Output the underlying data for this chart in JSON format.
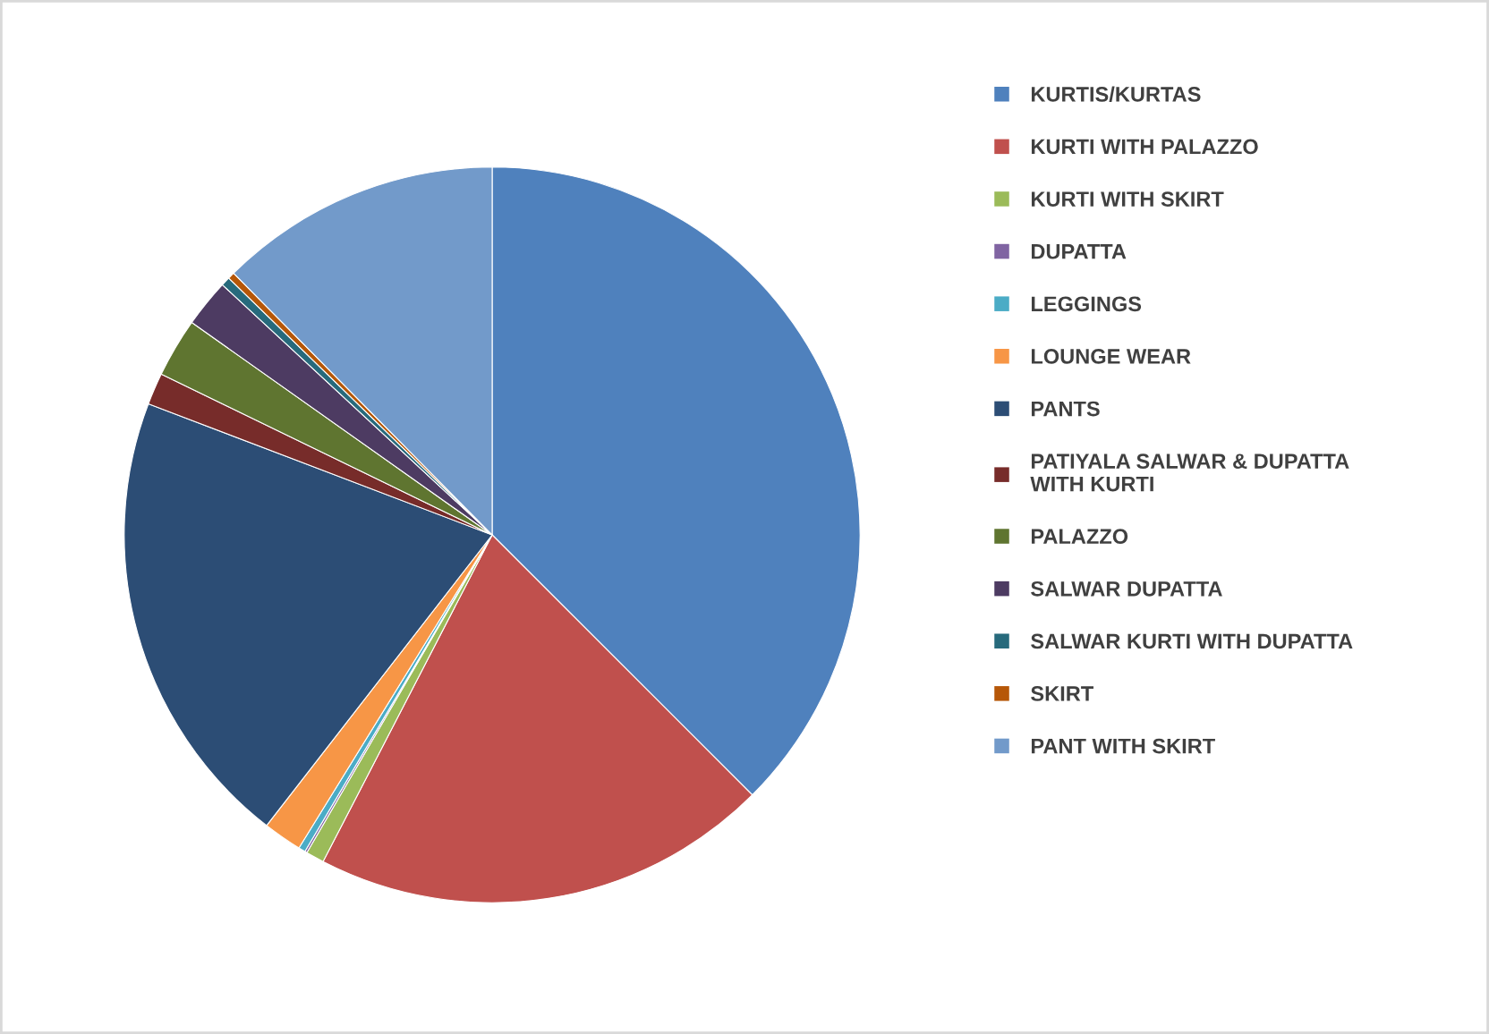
{
  "chart_data": {
    "type": "pie",
    "categories": [
      "KURTIS/KURTAS",
      "KURTI WITH PALAZZO",
      "KURTI WITH SKIRT",
      "DUPATTA",
      "LEGGINGS",
      "LOUNGE WEAR",
      "PANTS",
      "PATIYALA SALWAR & DUPATTA WITH KURTI",
      "PALAZZO",
      "SALWAR DUPATTA",
      "SALWAR KURTI WITH DUPATTA",
      "SKIRT",
      "PANT WITH SKIRT"
    ],
    "values": [
      37.5,
      20.1,
      0.8,
      0.1,
      0.3,
      1.7,
      20.3,
      1.4,
      2.6,
      2.1,
      0.4,
      0.3,
      12.4
    ],
    "colors": [
      "#4f81bd",
      "#c0504d",
      "#9bbb59",
      "#8064a2",
      "#4bacc6",
      "#f79646",
      "#2c4d75",
      "#772c2a",
      "#5f7530",
      "#4d3b62",
      "#276a7c",
      "#b65708",
      "#729aca"
    ],
    "legend": "right"
  }
}
